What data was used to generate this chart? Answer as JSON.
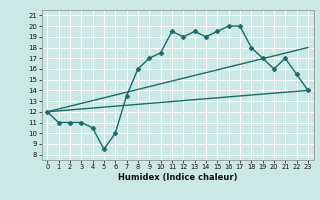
{
  "xlabel": "Humidex (Indice chaleur)",
  "bg_color": "#cce8e4",
  "line_color": "#1a6b6b",
  "grid_color": "#ffffff",
  "xlim": [
    -0.5,
    23.5
  ],
  "ylim": [
    7.5,
    21.5
  ],
  "xticks": [
    0,
    1,
    2,
    3,
    4,
    5,
    6,
    7,
    8,
    9,
    10,
    11,
    12,
    13,
    14,
    15,
    16,
    17,
    18,
    19,
    20,
    21,
    22,
    23
  ],
  "yticks": [
    8,
    9,
    10,
    11,
    12,
    13,
    14,
    15,
    16,
    17,
    18,
    19,
    20,
    21
  ],
  "line1_x": [
    0,
    1,
    2,
    3,
    4,
    5,
    6,
    7,
    8,
    9,
    10,
    11,
    12,
    13,
    14,
    15,
    16,
    17,
    18,
    19,
    20,
    21,
    22,
    23
  ],
  "line1_y": [
    12,
    11,
    11,
    11,
    10.5,
    8.5,
    10,
    13.5,
    16,
    17,
    17.5,
    19.5,
    19,
    19.5,
    19,
    19.5,
    20,
    20,
    18,
    17,
    16,
    17,
    15.5,
    14
  ],
  "line2_x": [
    0,
    23
  ],
  "line2_y": [
    12,
    14
  ],
  "line3_x": [
    0,
    23
  ],
  "line3_y": [
    12,
    18
  ],
  "markersize": 2.5,
  "linewidth": 1.0
}
